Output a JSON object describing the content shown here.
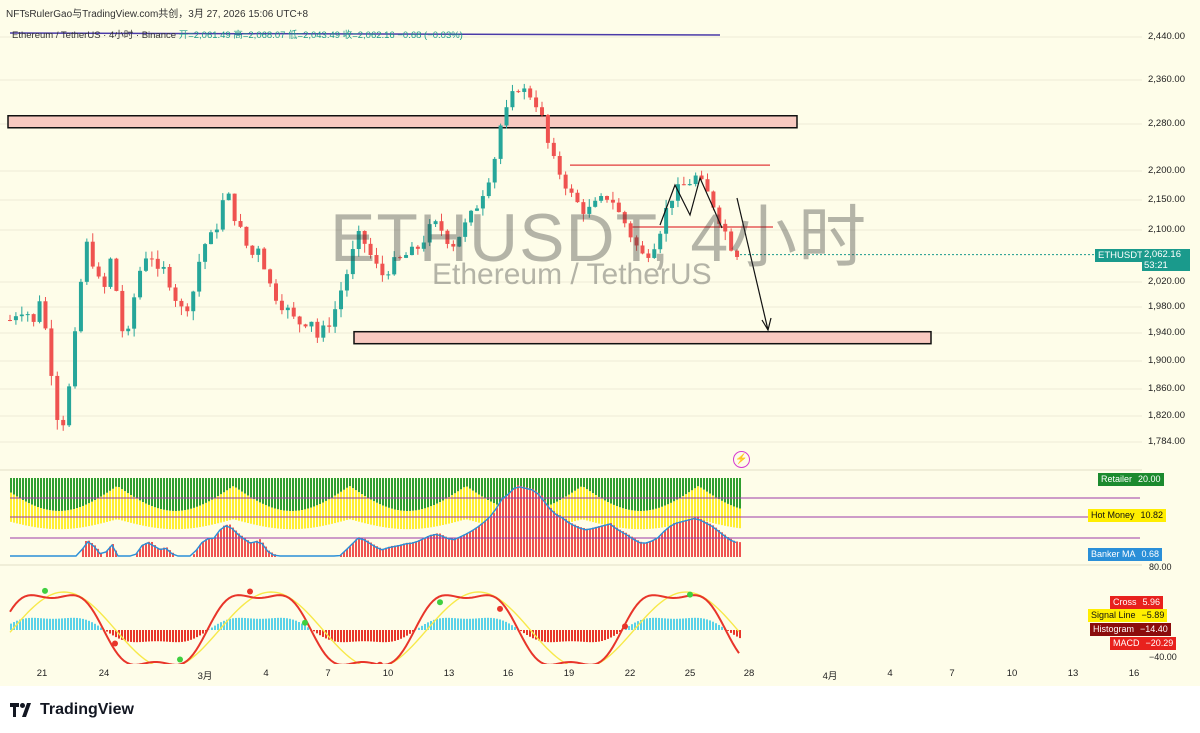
{
  "header": {
    "publisher": "NFTsRulerGao与TradingView.com共创，3月 27, 2026 15:06 UTC+8",
    "symbol": "Ethereum / TetherUS · 4小时 · Binance",
    "ohlc": "开=2,061.49  高=2,068.07  低=2,043.49  收=2,062.16  −0.68 (−0.03%)"
  },
  "watermark": {
    "main": "ETHUSDT, 4小时",
    "sub": "Ethereum / TetherUS"
  },
  "price_tag": {
    "symbol": "ETHUSDT",
    "price": "2,062.16",
    "countdown": "53:21"
  },
  "indicator_labels": {
    "retailer": {
      "label": "Retailer",
      "value": "20.00"
    },
    "hot_money": {
      "label": "Hot Money",
      "value": "10.82"
    },
    "banker_ma": {
      "label": "Banker MA",
      "value": "0.68"
    },
    "cross": {
      "label": "Cross",
      "value": "5.96"
    },
    "signal_line": {
      "label": "Signal Line",
      "value": "−5.89"
    },
    "histogram": {
      "label": "Histogram",
      "value": "−14.40"
    },
    "macd": {
      "label": "MACD",
      "value": "−20.29"
    }
  },
  "banker_axis": {
    "top": "80.00"
  },
  "macd_axis": {
    "top": "40.00",
    "bottom": "−40.00"
  },
  "footer": {
    "brand": "TradingView"
  },
  "colors": {
    "up": "#26a69a",
    "down": "#ef5350",
    "zone": "#f8c9c0",
    "wm": "#3c3c3c"
  },
  "chart_data": {
    "type": "candlestick",
    "title": "ETHUSDT, 4小时",
    "subtitle": "Ethereum / TetherUS",
    "y_ticks": [
      "2,440.00",
      "2,360.00",
      "2,280.00",
      "2,200.00",
      "2,150.00",
      "2,100.00",
      "2,020.00",
      "1,980.00",
      "1,940.00",
      "1,900.00",
      "1,860.00",
      "1,820.00",
      "1,784.00"
    ],
    "x_ticks": [
      "21",
      "24",
      "3月",
      "4",
      "7",
      "10",
      "13",
      "16",
      "19",
      "22",
      "25",
      "28",
      "4月",
      "4",
      "7",
      "10",
      "13",
      "16"
    ],
    "ylim": [
      1760,
      2460
    ],
    "last_price": 2062.16,
    "close_path": [
      [
        0,
        1960
      ],
      [
        6,
        1975
      ],
      [
        12,
        1980
      ],
      [
        18,
        1950
      ],
      [
        23,
        1995
      ],
      [
        30,
        1920
      ],
      [
        37,
        1820
      ],
      [
        40,
        1800
      ],
      [
        48,
        1880
      ],
      [
        54,
        2000
      ],
      [
        59,
        2080
      ],
      [
        66,
        2045
      ],
      [
        72,
        1995
      ],
      [
        79,
        2060
      ],
      [
        84,
        1990
      ],
      [
        90,
        1910
      ],
      [
        96,
        1990
      ],
      [
        103,
        2055
      ],
      [
        109,
        2070
      ],
      [
        115,
        2030
      ],
      [
        121,
        2040
      ],
      [
        128,
        2000
      ],
      [
        133,
        1975
      ],
      [
        141,
        1990
      ],
      [
        148,
        2060
      ],
      [
        153,
        2085
      ],
      [
        159,
        2090
      ],
      [
        165,
        2145
      ],
      [
        170,
        2155
      ],
      [
        177,
        2110
      ],
      [
        183,
        2080
      ],
      [
        188,
        2060
      ],
      [
        194,
        2080
      ],
      [
        201,
        2020
      ],
      [
        208,
        1995
      ],
      [
        214,
        1980
      ],
      [
        221,
        1960
      ],
      [
        227,
        1955
      ],
      [
        234,
        1965
      ],
      [
        240,
        1930
      ],
      [
        246,
        1950
      ],
      [
        252,
        1970
      ],
      [
        258,
        2010
      ],
      [
        265,
        2050
      ],
      [
        270,
        2090
      ],
      [
        276,
        2080
      ],
      [
        283,
        2050
      ],
      [
        289,
        2030
      ],
      [
        296,
        2045
      ],
      [
        302,
        2050
      ],
      [
        307,
        2060
      ],
      [
        314,
        2065
      ],
      [
        320,
        2080
      ],
      [
        326,
        2100
      ],
      [
        333,
        2110
      ],
      [
        339,
        2090
      ],
      [
        345,
        2080
      ],
      [
        352,
        2100
      ],
      [
        358,
        2120
      ],
      [
        363,
        2140
      ],
      [
        369,
        2170
      ],
      [
        376,
        2210
      ],
      [
        382,
        2280
      ],
      [
        388,
        2310
      ],
      [
        394,
        2350
      ],
      [
        400,
        2340
      ],
      [
        407,
        2330
      ],
      [
        413,
        2300
      ],
      [
        418,
        2250
      ],
      [
        424,
        2210
      ],
      [
        430,
        2190
      ],
      [
        436,
        2160
      ],
      [
        443,
        2140
      ],
      [
        449,
        2130
      ],
      [
        455,
        2140
      ],
      [
        461,
        2150
      ],
      [
        467,
        2160
      ],
      [
        473,
        2130
      ],
      [
        479,
        2110
      ],
      [
        486,
        2080
      ],
      [
        492,
        2060
      ],
      [
        498,
        2070
      ],
      [
        504,
        2090
      ],
      [
        510,
        2130
      ],
      [
        516,
        2160
      ],
      [
        522,
        2170
      ],
      [
        528,
        2180
      ],
      [
        534,
        2190
      ],
      [
        540,
        2170
      ],
      [
        546,
        2150
      ],
      [
        552,
        2120
      ],
      [
        558,
        2090
      ],
      [
        563,
        2070
      ],
      [
        569,
        2062.16
      ]
    ],
    "zones": [
      {
        "name": "resistance",
        "from": 2275,
        "to": 2295
      },
      {
        "name": "support",
        "from": 1928,
        "to": 1942
      }
    ],
    "lines": [
      {
        "name": "level",
        "value": 2210
      },
      {
        "name": "level",
        "value": 2105
      }
    ],
    "panels": [
      {
        "name": "Retailer / Hot Money / Banker MA",
        "values": {
          "Retailer": 20.0,
          "Hot Money": 10.82,
          "Banker MA": 0.68
        }
      },
      {
        "name": "MACD",
        "values": {
          "Cross": 5.96,
          "Signal Line": -5.89,
          "Histogram": -14.4,
          "MACD": -20.29
        }
      }
    ]
  }
}
